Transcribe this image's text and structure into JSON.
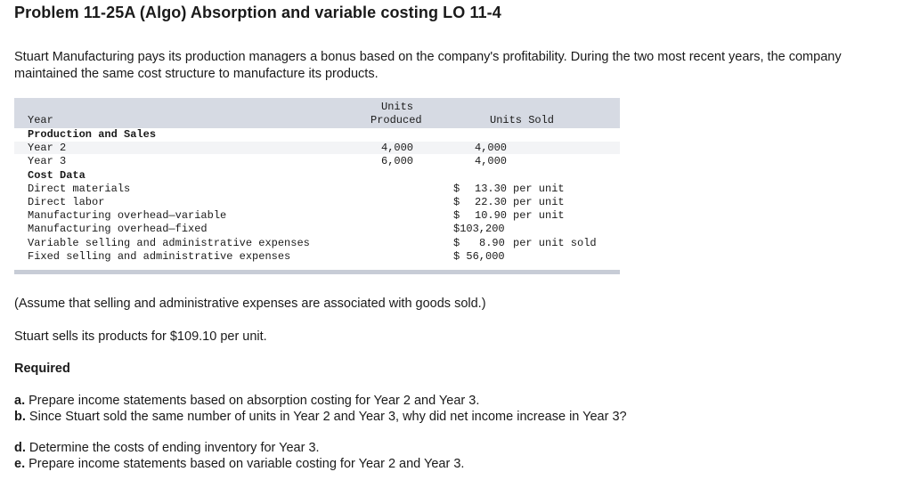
{
  "title": "Problem 11-25A (Algo) Absorption and variable costing LO 11-4",
  "intro": "Stuart Manufacturing pays its production managers a bonus based on the company's profitability. During the two most recent years, the company maintained the same cost structure to manufacture its products.",
  "table": {
    "header": {
      "year": "Year",
      "units_produced_line1": "Units",
      "units_produced_line2": "Produced",
      "units_sold": "Units Sold"
    },
    "production_heading": "Production and Sales",
    "production_rows": [
      {
        "label": "Year 2",
        "produced": "4,000",
        "sold": "4,000"
      },
      {
        "label": "Year 3",
        "produced": "6,000",
        "sold": "4,000"
      }
    ],
    "cost_heading": "Cost Data",
    "cost_rows": [
      {
        "label": "Direct materials",
        "cur": "$",
        "amount": "13.30",
        "unit": "per unit"
      },
      {
        "label": "Direct labor",
        "cur": "$",
        "amount": "22.30",
        "unit": "per unit"
      },
      {
        "label": "Manufacturing overhead—variable",
        "cur": "$",
        "amount": "10.90",
        "unit": "per unit"
      },
      {
        "label": "Manufacturing overhead—fixed",
        "cur": "",
        "amount": "$103,200",
        "unit": ""
      },
      {
        "label": "Variable selling and administrative expenses",
        "cur": "$",
        "amount": "8.90",
        "unit": "per unit sold"
      },
      {
        "label": "Fixed selling and administrative expenses",
        "cur": "",
        "amount": "$ 56,000",
        "unit": ""
      }
    ]
  },
  "assume": "(Assume that selling and administrative expenses are associated with goods sold.)",
  "sells": "Stuart sells its products for $109.10 per unit.",
  "required": "Required",
  "items": [
    {
      "letter": "a.",
      "text": "Prepare income statements based on absorption costing for Year 2 and Year 3."
    },
    {
      "letter": "b.",
      "text": "Since Stuart sold the same number of units in Year 2 and Year 3, why did net income increase in Year 3?"
    },
    {
      "letter": "d.",
      "text": "Determine the costs of ending inventory for Year 3."
    },
    {
      "letter": "e.",
      "text": "Prepare income statements based on variable costing for Year 2 and Year 3."
    }
  ]
}
